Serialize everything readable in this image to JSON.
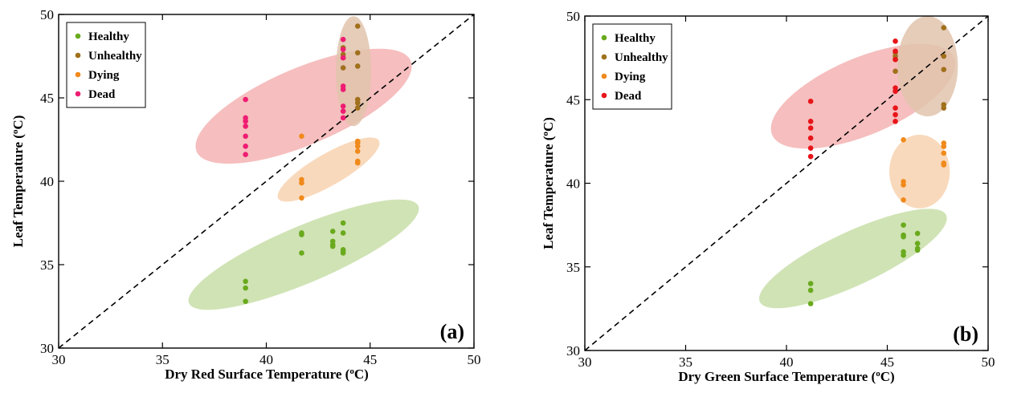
{
  "colors": {
    "Healthy": "#6aaa1e",
    "Unhealthy": "#a0701c",
    "Dying": "#f08a1c",
    "Dead_a": "#ee1d72",
    "Dead_b": "#e8151a"
  },
  "chart_data": [
    {
      "type": "scatter",
      "panel_label": "(a)",
      "xlabel_main": "Dry Red Surface Temperature (",
      "xlabel_sup": "o",
      "xlabel_end": "C)",
      "ylabel_main": "Leaf Temperature (",
      "ylabel_sup": "o",
      "ylabel_end": "C)",
      "xlim": [
        30,
        50
      ],
      "ylim": [
        30,
        50
      ],
      "xticks": [
        "30",
        "35",
        "40",
        "45",
        "50"
      ],
      "yticks": [
        "30",
        "35",
        "40",
        "45",
        "50"
      ],
      "reference_line": "y = x (dashed)",
      "legend_position": "top-left",
      "legend": [
        {
          "label": "Healthy",
          "color_key": "Healthy"
        },
        {
          "label": "Unhealthy",
          "color_key": "Unhealthy"
        },
        {
          "label": "Dying",
          "color_key": "Dying"
        },
        {
          "label": "Dead",
          "color_key": "Dead_a"
        }
      ],
      "ellipses": [
        {
          "group": "Healthy",
          "cx": 41.8,
          "cy": 35.6,
          "rx": 6.0,
          "ry": 1.7,
          "angle_deg": -23,
          "fill": "#c8dea8"
        },
        {
          "group": "Dying",
          "cx": 43.0,
          "cy": 40.7,
          "rx": 2.8,
          "ry": 0.95,
          "angle_deg": -30,
          "fill": "#f8d2b0"
        },
        {
          "group": "Dead",
          "cx": 41.8,
          "cy": 44.5,
          "rx": 5.6,
          "ry": 2.3,
          "angle_deg": -23,
          "fill": "#f5b3b3"
        },
        {
          "group": "Unhealthy",
          "cx": 44.2,
          "cy": 46.6,
          "rx": 0.85,
          "ry": 3.3,
          "angle_deg": 0,
          "fill": "#e0c4ad"
        }
      ],
      "series": [
        {
          "name": "Healthy",
          "color_key": "Healthy",
          "points": [
            [
              39.0,
              32.8
            ],
            [
              39.0,
              33.6
            ],
            [
              39.0,
              34.0
            ],
            [
              41.7,
              35.7
            ],
            [
              41.7,
              36.8
            ],
            [
              41.7,
              36.9
            ],
            [
              43.2,
              36.1
            ],
            [
              43.2,
              36.2
            ],
            [
              43.2,
              36.4
            ],
            [
              43.2,
              37.0
            ],
            [
              43.7,
              35.7
            ],
            [
              43.7,
              35.8
            ],
            [
              43.7,
              35.9
            ],
            [
              43.7,
              36.9
            ],
            [
              43.7,
              37.5
            ]
          ]
        },
        {
          "name": "Unhealthy",
          "color_key": "Unhealthy",
          "points": [
            [
              43.7,
              46.8
            ],
            [
              43.7,
              47.4
            ],
            [
              43.7,
              47.6
            ],
            [
              43.7,
              48.0
            ],
            [
              44.4,
              44.4
            ],
            [
              44.4,
              44.7
            ],
            [
              44.4,
              44.9
            ],
            [
              44.4,
              46.9
            ],
            [
              44.4,
              47.7
            ],
            [
              44.4,
              49.3
            ]
          ]
        },
        {
          "name": "Dying",
          "color_key": "Dying",
          "points": [
            [
              41.7,
              39.0
            ],
            [
              41.7,
              39.9
            ],
            [
              41.7,
              40.1
            ],
            [
              41.7,
              42.7
            ],
            [
              44.4,
              41.1
            ],
            [
              44.4,
              41.2
            ],
            [
              44.4,
              41.8
            ],
            [
              44.4,
              42.1
            ],
            [
              44.4,
              42.3
            ],
            [
              44.4,
              42.4
            ]
          ]
        },
        {
          "name": "Dead",
          "color_key": "Dead_a",
          "points": [
            [
              39.0,
              41.6
            ],
            [
              39.0,
              42.1
            ],
            [
              39.0,
              42.7
            ],
            [
              39.0,
              43.3
            ],
            [
              39.0,
              43.6
            ],
            [
              39.0,
              43.8
            ],
            [
              39.0,
              44.9
            ],
            [
              43.7,
              43.8
            ],
            [
              43.7,
              44.2
            ],
            [
              43.7,
              44.5
            ],
            [
              43.7,
              45.5
            ],
            [
              43.7,
              45.7
            ],
            [
              43.7,
              47.4
            ],
            [
              43.7,
              47.9
            ],
            [
              43.7,
              48.5
            ]
          ]
        }
      ]
    },
    {
      "type": "scatter",
      "panel_label": "(b)",
      "xlabel_main": "Dry Green Surface Temperature (",
      "xlabel_sup": "o",
      "xlabel_end": "C)",
      "ylabel_main": "Leaf Temperature (",
      "ylabel_sup": "o",
      "ylabel_end": "C)",
      "xlim": [
        30,
        50
      ],
      "ylim": [
        30,
        50
      ],
      "xticks": [
        "30",
        "35",
        "40",
        "45",
        "50"
      ],
      "yticks": [
        "30",
        "35",
        "40",
        "45",
        "50"
      ],
      "reference_line": "y = x (dashed)",
      "legend_position": "top-left",
      "legend": [
        {
          "label": "Healthy",
          "color_key": "Healthy"
        },
        {
          "label": "Unhealthy",
          "color_key": "Unhealthy"
        },
        {
          "label": "Dying",
          "color_key": "Dying"
        },
        {
          "label": "Dead",
          "color_key": "Dead_b"
        }
      ],
      "ellipses": [
        {
          "group": "Healthy",
          "cx": 43.3,
          "cy": 35.5,
          "rx": 5.1,
          "ry": 1.6,
          "angle_deg": -25,
          "fill": "#c8dea8"
        },
        {
          "group": "Dying",
          "cx": 46.6,
          "cy": 40.7,
          "rx": 1.5,
          "ry": 2.2,
          "angle_deg": 0,
          "fill": "#f8d2b0"
        },
        {
          "group": "Dead",
          "cx": 43.8,
          "cy": 45.2,
          "rx": 4.9,
          "ry": 2.3,
          "angle_deg": -23,
          "fill": "#f5b3b3"
        },
        {
          "group": "Unhealthy",
          "cx": 47.0,
          "cy": 47.0,
          "rx": 1.5,
          "ry": 3.0,
          "angle_deg": 0,
          "fill": "#e0c4ad"
        }
      ],
      "series": [
        {
          "name": "Healthy",
          "color_key": "Healthy",
          "points": [
            [
              41.2,
              32.8
            ],
            [
              41.2,
              33.6
            ],
            [
              41.2,
              34.0
            ],
            [
              45.8,
              35.7
            ],
            [
              45.8,
              35.9
            ],
            [
              45.8,
              36.8
            ],
            [
              45.8,
              36.9
            ],
            [
              45.8,
              37.5
            ],
            [
              46.5,
              36.0
            ],
            [
              46.5,
              36.1
            ],
            [
              46.5,
              36.4
            ],
            [
              46.5,
              37.0
            ]
          ]
        },
        {
          "name": "Unhealthy",
          "color_key": "Unhealthy",
          "points": [
            [
              45.4,
              46.7
            ],
            [
              45.4,
              47.4
            ],
            [
              45.4,
              47.6
            ],
            [
              45.4,
              47.8
            ],
            [
              47.8,
              44.5
            ],
            [
              47.8,
              44.7
            ],
            [
              47.8,
              46.8
            ],
            [
              47.8,
              47.6
            ],
            [
              47.8,
              49.3
            ]
          ]
        },
        {
          "name": "Dying",
          "color_key": "Dying",
          "points": [
            [
              45.8,
              39.0
            ],
            [
              45.8,
              39.9
            ],
            [
              45.8,
              40.1
            ],
            [
              45.8,
              42.6
            ],
            [
              47.8,
              41.1
            ],
            [
              47.8,
              41.2
            ],
            [
              47.8,
              41.8
            ],
            [
              47.8,
              42.2
            ],
            [
              47.8,
              42.4
            ]
          ]
        },
        {
          "name": "Dead",
          "color_key": "Dead_b",
          "points": [
            [
              41.2,
              41.6
            ],
            [
              41.2,
              42.1
            ],
            [
              41.2,
              42.7
            ],
            [
              41.2,
              43.3
            ],
            [
              41.2,
              43.7
            ],
            [
              41.2,
              44.9
            ],
            [
              45.4,
              43.7
            ],
            [
              45.4,
              44.1
            ],
            [
              45.4,
              44.5
            ],
            [
              45.4,
              45.5
            ],
            [
              45.4,
              45.7
            ],
            [
              45.4,
              47.4
            ],
            [
              45.4,
              47.9
            ],
            [
              45.4,
              48.5
            ]
          ]
        }
      ]
    }
  ]
}
